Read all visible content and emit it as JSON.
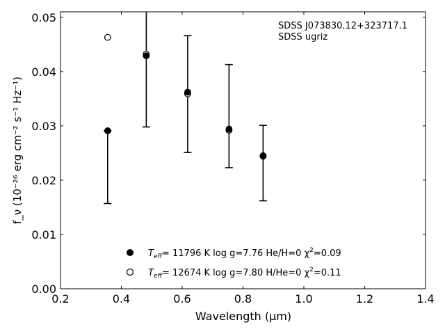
{
  "chart_data": {
    "type": "scatter",
    "annotation": [
      "SDSS J073830.12+323717.1",
      "SDSS ugriz"
    ],
    "xlabel": "Wavelength (μm)",
    "ylabel": "f_ν (10⁻²⁶ erg cm⁻² s⁻¹ Hz⁻¹)",
    "xlim": [
      0.2,
      1.4
    ],
    "ylim": [
      0.0,
      0.051
    ],
    "x_ticks": [
      "0.2",
      "0.4",
      "0.6",
      "0.8",
      "1.0",
      "1.2",
      "1.4"
    ],
    "y_ticks": [
      "0.00",
      "0.01",
      "0.02",
      "0.03",
      "0.04",
      "0.05"
    ],
    "x_tick_values": [
      0.2,
      0.4,
      0.6,
      0.8,
      1.0,
      1.2,
      1.4
    ],
    "y_tick_values": [
      0.0,
      0.01,
      0.02,
      0.03,
      0.04,
      0.05
    ],
    "grid": false,
    "legend_position": "bottom-center",
    "observed": {
      "x": [
        0.355,
        0.482,
        0.618,
        0.754,
        0.866
      ],
      "y": [
        0.0291,
        0.043,
        0.0362,
        0.0294,
        0.0244
      ],
      "yerr_low": [
        0.0157,
        0.0298,
        0.0251,
        0.0223,
        0.0162
      ],
      "yerr_high": [
        0.0291,
        0.051,
        0.0466,
        0.0413,
        0.0301
      ]
    },
    "series": [
      {
        "label_prefix": "T",
        "label_sub": "eff",
        "label_rest": "= 11796 K  log g=7.76  He/H=0  χ",
        "label_sup": "2",
        "label_end": "=0.09",
        "marker": "filled-circle",
        "x": [
          0.355,
          0.482,
          0.618,
          0.754,
          0.866
        ],
        "y": [
          0.0291,
          0.0429,
          0.0362,
          0.0294,
          0.0244
        ]
      },
      {
        "label_prefix": "T",
        "label_sub": "eff",
        "label_rest": "= 12674 K  log g=7.80  H/He=0  χ",
        "label_sup": "2",
        "label_end": "=0.11",
        "marker": "open-circle",
        "x": [
          0.355,
          0.482,
          0.618,
          0.754,
          0.866
        ],
        "y": [
          0.0463,
          0.0432,
          0.0359,
          0.0292,
          0.0245
        ]
      }
    ]
  }
}
